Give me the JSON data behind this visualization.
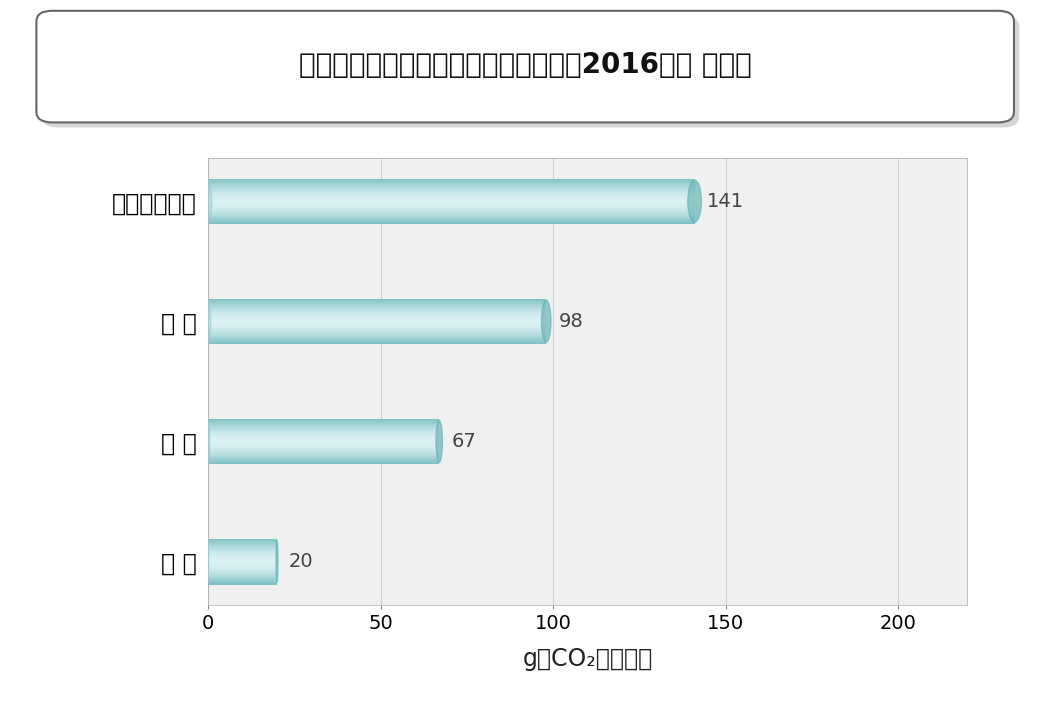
{
  "title": "輸送量当たりの二酸化炭素の排出量（2016年度 旅客）",
  "categories": [
    "自家用乗用車",
    "航 空",
    "バ ス",
    "鉄 道"
  ],
  "values": [
    141,
    98,
    67,
    20
  ],
  "bar_color_light": "#c5e8ea",
  "bar_color_mid": "#96cfd2",
  "bar_color_dark": "#6db5b8",
  "bar_color_top": "#daf0f2",
  "bar_color_bottom": "#7bbfc2",
  "xlabel": "g－CO₂／人キロ",
  "xlim": [
    0,
    220
  ],
  "xticks": [
    0,
    50,
    100,
    150,
    200
  ],
  "background_color": "#ffffff",
  "plot_bg_color": "#f0f0f0",
  "grid_color": "#d0d0d0",
  "title_fontsize": 20,
  "label_fontsize": 17,
  "tick_fontsize": 14,
  "value_fontsize": 14,
  "xlabel_fontsize": 17,
  "bar_height": 0.38
}
